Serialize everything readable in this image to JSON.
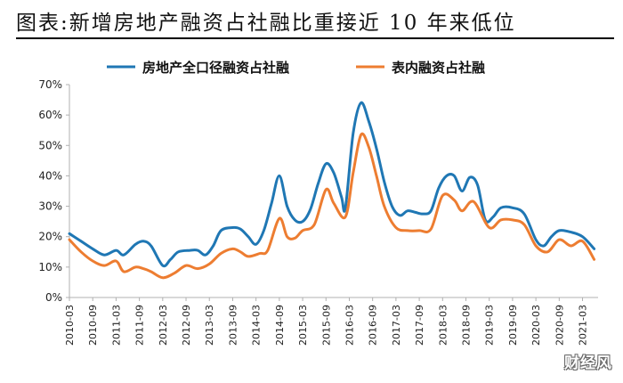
{
  "title": "图表:新增房地产融资占社融比重接近 10 年来低位",
  "watermark": "财经风",
  "colors": {
    "series_1": "#1f77b4",
    "series_2": "#ed7d31",
    "axis": "#b0b0b0"
  },
  "chart_data": {
    "type": "line",
    "title": "",
    "xlabel": "",
    "ylabel": "",
    "ylim": [
      0,
      70
    ],
    "y_ticks": [
      "0%",
      "10%",
      "20%",
      "30%",
      "40%",
      "50%",
      "60%",
      "70%"
    ],
    "x_ticks": [
      "2010-03",
      "2010-09",
      "2011-03",
      "2011-09",
      "2012-03",
      "2012-09",
      "2013-03",
      "2013-09",
      "2014-03",
      "2014-09",
      "2015-03",
      "2015-09",
      "2016-03",
      "2016-09",
      "2017-03",
      "2017-09",
      "2018-03",
      "2018-09",
      "2019-03",
      "2019-09",
      "2020-03",
      "2020-09",
      "2021-03"
    ],
    "grid": false,
    "legend_position": "top",
    "series": [
      {
        "name": "房地产全口径融资占社融",
        "color": "#1f77b4",
        "points": [
          [
            "2010-03",
            21
          ],
          [
            "2010-06",
            18.5
          ],
          [
            "2010-09",
            16
          ],
          [
            "2010-12",
            14
          ],
          [
            "2011-03",
            15.5
          ],
          [
            "2011-05",
            14
          ],
          [
            "2011-08",
            17.5
          ],
          [
            "2011-10",
            18.5
          ],
          [
            "2011-12",
            17
          ],
          [
            "2012-03",
            10.5
          ],
          [
            "2012-05",
            12.5
          ],
          [
            "2012-07",
            15
          ],
          [
            "2012-10",
            15.5
          ],
          [
            "2012-12",
            15.5
          ],
          [
            "2013-02",
            14
          ],
          [
            "2013-04",
            17
          ],
          [
            "2013-06",
            22
          ],
          [
            "2013-09",
            23
          ],
          [
            "2013-11",
            22.5
          ],
          [
            "2014-01",
            20
          ],
          [
            "2014-03",
            17.5
          ],
          [
            "2014-05",
            22
          ],
          [
            "2014-07",
            31
          ],
          [
            "2014-09",
            40
          ],
          [
            "2014-11",
            30
          ],
          [
            "2015-01",
            25.5
          ],
          [
            "2015-03",
            25
          ],
          [
            "2015-05",
            29
          ],
          [
            "2015-07",
            37.5
          ],
          [
            "2015-09",
            44
          ],
          [
            "2015-11",
            41
          ],
          [
            "2016-01",
            33
          ],
          [
            "2016-02",
            29.5
          ],
          [
            "2016-04",
            54
          ],
          [
            "2016-06",
            64
          ],
          [
            "2016-08",
            58
          ],
          [
            "2016-10",
            49
          ],
          [
            "2016-12",
            38
          ],
          [
            "2017-02",
            30
          ],
          [
            "2017-04",
            27
          ],
          [
            "2017-06",
            28.5
          ],
          [
            "2017-08",
            28
          ],
          [
            "2017-10",
            27.5
          ],
          [
            "2017-12",
            28.5
          ],
          [
            "2018-02",
            36
          ],
          [
            "2018-04",
            40
          ],
          [
            "2018-06",
            40
          ],
          [
            "2018-08",
            35
          ],
          [
            "2018-10",
            39.5
          ],
          [
            "2018-12",
            37
          ],
          [
            "2019-02",
            25.5
          ],
          [
            "2019-04",
            26.5
          ],
          [
            "2019-06",
            29.5
          ],
          [
            "2019-09",
            29.5
          ],
          [
            "2019-12",
            27.5
          ],
          [
            "2020-03",
            19
          ],
          [
            "2020-05",
            17
          ],
          [
            "2020-07",
            20
          ],
          [
            "2020-09",
            22
          ],
          [
            "2020-12",
            21.5
          ],
          [
            "2021-03",
            20
          ],
          [
            "2021-06",
            16
          ]
        ]
      },
      {
        "name": "表内融资占社融",
        "color": "#ed7d31",
        "points": [
          [
            "2010-03",
            19
          ],
          [
            "2010-06",
            15
          ],
          [
            "2010-09",
            12
          ],
          [
            "2010-12",
            10.5
          ],
          [
            "2011-03",
            12
          ],
          [
            "2011-05",
            8.5
          ],
          [
            "2011-08",
            10
          ],
          [
            "2011-10",
            9.5
          ],
          [
            "2011-12",
            8.5
          ],
          [
            "2012-03",
            6.5
          ],
          [
            "2012-06",
            8
          ],
          [
            "2012-09",
            10.5
          ],
          [
            "2012-12",
            9.5
          ],
          [
            "2013-03",
            11
          ],
          [
            "2013-06",
            14.5
          ],
          [
            "2013-09",
            16
          ],
          [
            "2013-11",
            15
          ],
          [
            "2014-01",
            13.5
          ],
          [
            "2014-04",
            14.5
          ],
          [
            "2014-06",
            15.5
          ],
          [
            "2014-09",
            26
          ],
          [
            "2014-11",
            20
          ],
          [
            "2015-01",
            19.5
          ],
          [
            "2015-03",
            22
          ],
          [
            "2015-06",
            24
          ],
          [
            "2015-09",
            35.5
          ],
          [
            "2015-11",
            31
          ],
          [
            "2016-02",
            26.5
          ],
          [
            "2016-04",
            41
          ],
          [
            "2016-06",
            53.5
          ],
          [
            "2016-08",
            49.5
          ],
          [
            "2016-10",
            40
          ],
          [
            "2016-12",
            30
          ],
          [
            "2017-03",
            23
          ],
          [
            "2017-06",
            22
          ],
          [
            "2017-09",
            22
          ],
          [
            "2017-12",
            22.5
          ],
          [
            "2018-03",
            33.5
          ],
          [
            "2018-06",
            32
          ],
          [
            "2018-08",
            28.5
          ],
          [
            "2018-11",
            31.5
          ],
          [
            "2019-03",
            23
          ],
          [
            "2019-06",
            25.5
          ],
          [
            "2019-09",
            25.5
          ],
          [
            "2019-12",
            24
          ],
          [
            "2020-03",
            17
          ],
          [
            "2020-06",
            15
          ],
          [
            "2020-09",
            19
          ],
          [
            "2020-12",
            17
          ],
          [
            "2021-03",
            18.5
          ],
          [
            "2021-06",
            12.5
          ]
        ]
      }
    ]
  }
}
